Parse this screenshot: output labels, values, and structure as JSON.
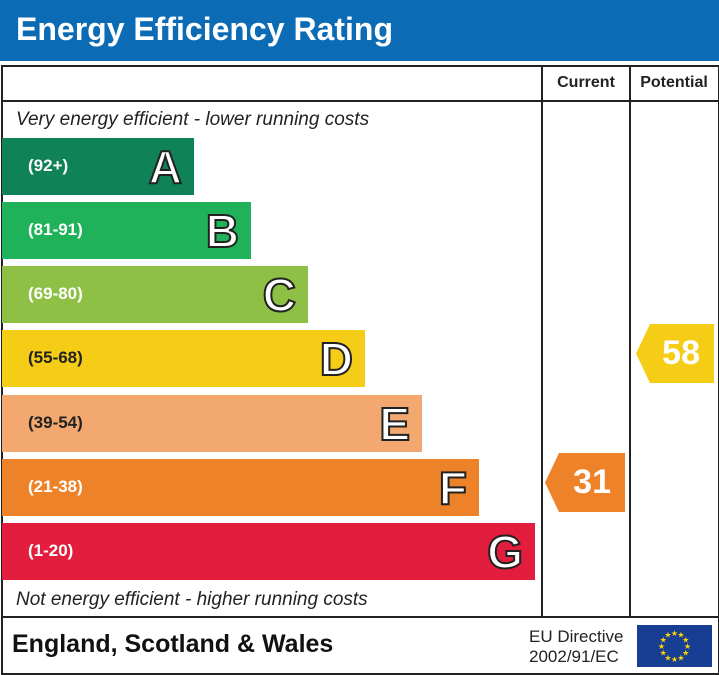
{
  "title": "Energy Efficiency Rating",
  "chart_data": {
    "type": "bar",
    "columns": [
      "Current",
      "Potential"
    ],
    "top_note": "Very energy efficient - lower running costs",
    "bottom_note": "Not energy efficient - higher running costs",
    "bands": [
      {
        "letter": "A",
        "range": "(92+)",
        "color": "#0f8258"
      },
      {
        "letter": "B",
        "range": "(81-91)",
        "color": "#1fb25a"
      },
      {
        "letter": "C",
        "range": "(69-80)",
        "color": "#8dc045"
      },
      {
        "letter": "D",
        "range": "(55-68)",
        "color": "#f6cd16"
      },
      {
        "letter": "E",
        "range": "(39-54)",
        "color": "#f2a86e"
      },
      {
        "letter": "F",
        "range": "(21-38)",
        "color": "#ee8228"
      },
      {
        "letter": "G",
        "range": "(1-20)",
        "color": "#e31d3e"
      }
    ],
    "current": {
      "value": "31",
      "band": "F"
    },
    "potential": {
      "value": "58",
      "band": "D"
    }
  },
  "footer": {
    "region": "England, Scotland & Wales",
    "directive_line1": "EU Directive",
    "directive_line2": "2002/91/EC",
    "flag_icon": "eu-flag-icon"
  }
}
